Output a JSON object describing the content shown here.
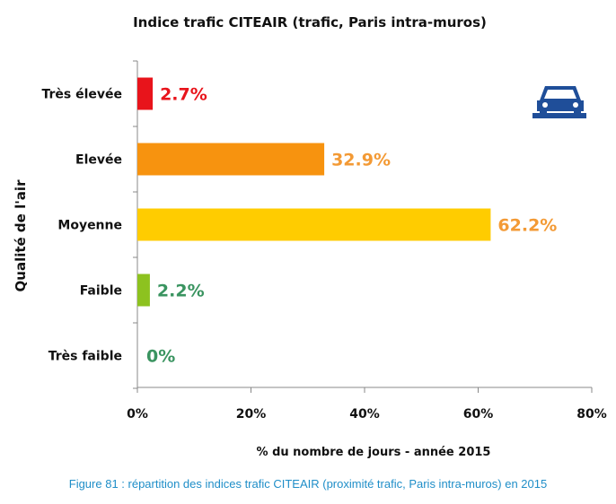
{
  "chart_data": {
    "type": "bar",
    "orientation": "horizontal",
    "title": "Indice trafic CITEAIR (trafic, Paris intra-muros)",
    "xlabel": "% du nombre de jours - année 2015",
    "ylabel": "Qualité de l'air",
    "categories": [
      "Très élevée",
      "Elevée",
      "Moyenne",
      "Faible",
      "Très faible"
    ],
    "values": [
      2.7,
      32.9,
      62.2,
      2.2,
      0
    ],
    "data_labels": [
      "2.7%",
      "32.9%",
      "62.2%",
      "2.2%",
      "0%"
    ],
    "bar_colors": [
      "#e8141b",
      "#f7930f",
      "#ffcc00",
      "#8dc21f",
      "#8dc21f"
    ],
    "label_colors": [
      "#e8141b",
      "#f39a35",
      "#f39a35",
      "#3a9460",
      "#3a9460"
    ],
    "xlim": [
      0,
      80
    ],
    "xticks": [
      0,
      20,
      40,
      60,
      80
    ],
    "xtick_labels": [
      "0%",
      "20%",
      "40%",
      "60%",
      "80%"
    ],
    "grid": false,
    "legend": "none",
    "icon": "car-icon",
    "icon_color": "#1f4e99"
  },
  "caption": "Figure 81 : répartition des indices trafic CITEAIR (proximité trafic, Paris intra-muros) en 2015"
}
